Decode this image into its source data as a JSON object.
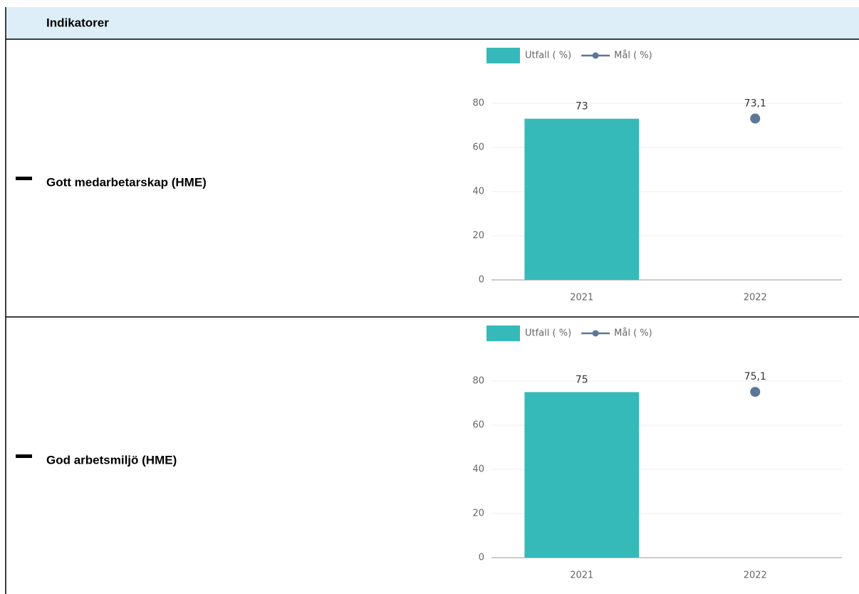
{
  "header": {
    "title": "Indikatorer"
  },
  "rows": [
    {
      "label": "Gott medarbetarskap (HME)",
      "chart": {
        "type": "bar",
        "categories": [
          "2021",
          "2022"
        ],
        "series": [
          {
            "name": "Utfall ( %)",
            "type": "bar",
            "color": "#36b9b9",
            "values": [
              73,
              null
            ]
          },
          {
            "name": "Mål ( %)",
            "type": "line",
            "color": "#5b7696",
            "values": [
              null,
              73.1
            ],
            "value_labels": [
              null,
              "73,1"
            ]
          }
        ],
        "ylim": [
          0,
          80
        ],
        "yticks": [
          0,
          20,
          40,
          60,
          80
        ],
        "grid": true,
        "legend": "top"
      }
    },
    {
      "label": "God arbetsmiljö (HME)",
      "chart": {
        "type": "bar",
        "categories": [
          "2021",
          "2022"
        ],
        "series": [
          {
            "name": "Utfall ( %)",
            "type": "bar",
            "color": "#36b9b9",
            "values": [
              75,
              null
            ]
          },
          {
            "name": "Mål ( %)",
            "type": "line",
            "color": "#5b7696",
            "values": [
              null,
              75.1
            ],
            "value_labels": [
              null,
              "75,1"
            ]
          }
        ],
        "ylim": [
          0,
          80
        ],
        "yticks": [
          0,
          20,
          40,
          60,
          80
        ],
        "grid": true,
        "legend": "top"
      }
    }
  ]
}
